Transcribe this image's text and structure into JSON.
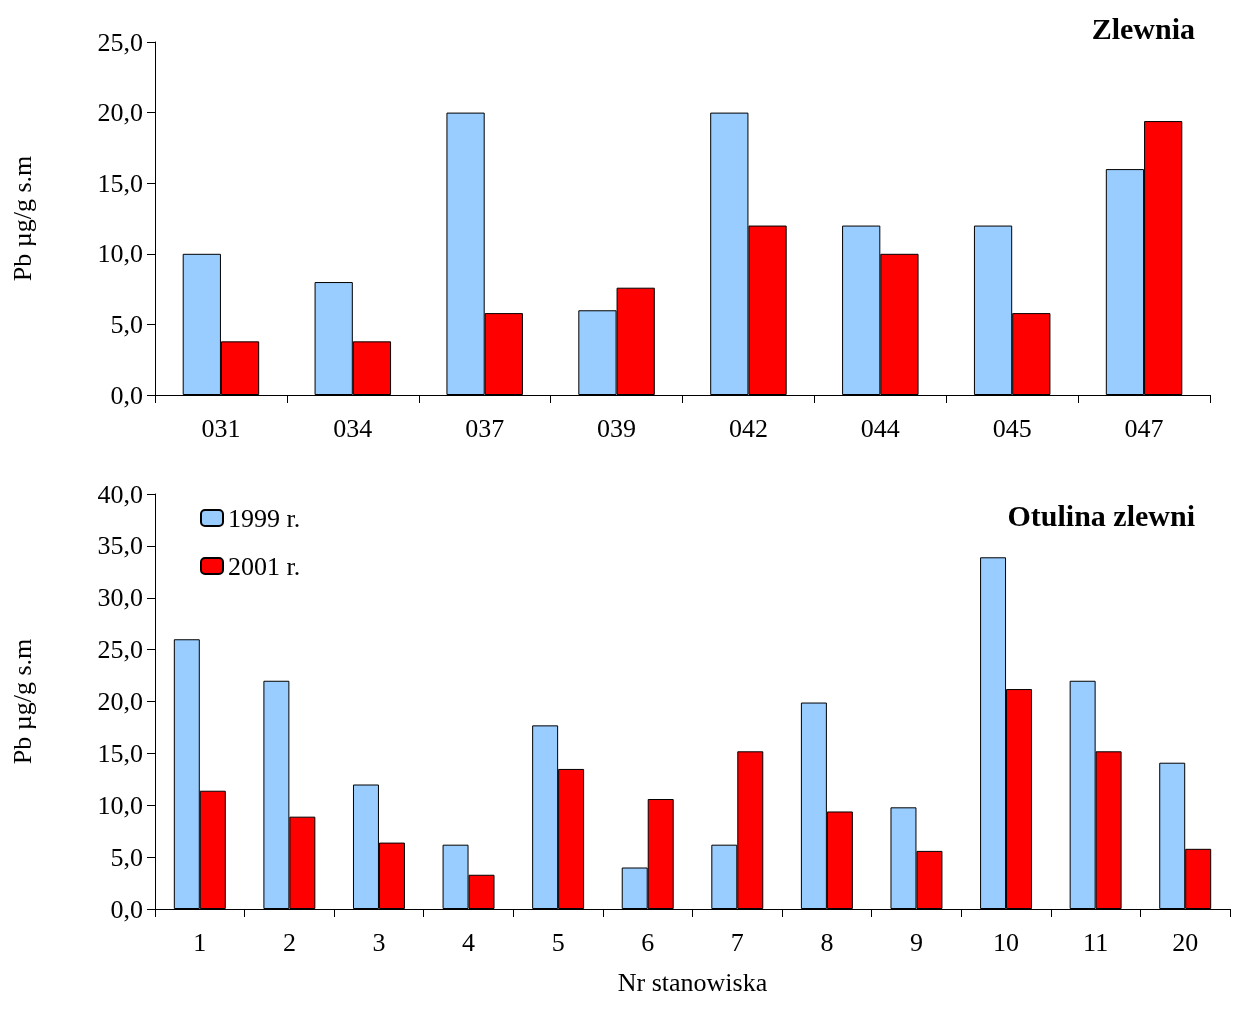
{
  "chart_data": [
    {
      "type": "bar",
      "title": "Zlewnia",
      "ylabel": "Pb µg/g s.m",
      "categories": [
        "031",
        "034",
        "037",
        "039",
        "042",
        "044",
        "045",
        "047"
      ],
      "series": [
        {
          "color": "#99ccff",
          "values": [
            10,
            8,
            20,
            6,
            20,
            12,
            12,
            16
          ]
        },
        {
          "color": "#ff0000",
          "values": [
            3.8,
            3.8,
            5.8,
            7.6,
            12,
            10,
            5.8,
            19.4
          ]
        }
      ],
      "ylim": [
        0,
        25
      ],
      "yticks": [
        {
          "value": 0,
          "label": "0,0"
        },
        {
          "value": 5,
          "label": "5,0"
        },
        {
          "value": 10,
          "label": "10,0"
        },
        {
          "value": 15,
          "label": "15,0"
        },
        {
          "value": 20,
          "label": "20,0"
        },
        {
          "value": 25,
          "label": "25,0"
        }
      ],
      "grid": false,
      "legend": false
    },
    {
      "type": "bar",
      "title": "Otulina zlewni",
      "xlabel": "Nr stanowiska",
      "ylabel": "Pb µg/g s.m",
      "categories": [
        "1",
        "2",
        "3",
        "4",
        "5",
        "6",
        "7",
        "8",
        "9",
        "10",
        "11",
        "20"
      ],
      "series": [
        {
          "name": "1999 r.",
          "color": "#99ccff",
          "values": [
            26,
            22,
            12,
            6.2,
            17.7,
            4,
            6.2,
            19.9,
            9.8,
            33.9,
            22,
            14.1
          ]
        },
        {
          "name": "2001 r.",
          "color": "#ff0000",
          "values": [
            11.4,
            8.9,
            6.4,
            3.3,
            13.5,
            10.6,
            15.2,
            9.4,
            5.6,
            21.2,
            15.2,
            5.8
          ]
        }
      ],
      "ylim": [
        0,
        40
      ],
      "yticks": [
        {
          "value": 0,
          "label": "0,0"
        },
        {
          "value": 5,
          "label": "5,0"
        },
        {
          "value": 10,
          "label": "10,0"
        },
        {
          "value": 15,
          "label": "15,0"
        },
        {
          "value": 20,
          "label": "20,0"
        },
        {
          "value": 25,
          "label": "25,0"
        },
        {
          "value": 30,
          "label": "30,0"
        },
        {
          "value": 35,
          "label": "35,0"
        },
        {
          "value": 40,
          "label": "40,0"
        }
      ],
      "grid": false,
      "legend": "top left"
    }
  ]
}
